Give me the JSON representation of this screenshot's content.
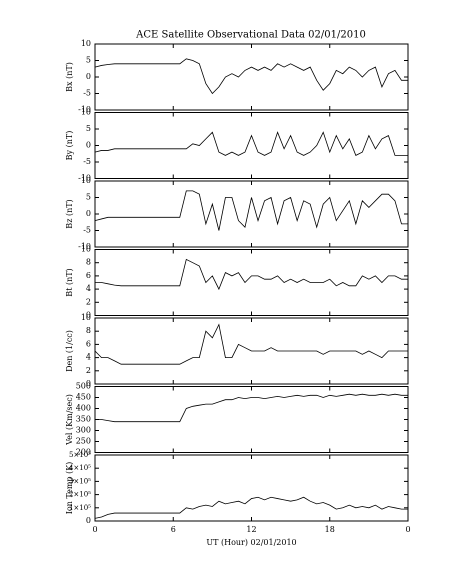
{
  "chart_data": [
    {
      "type": "line",
      "title": "ACE Satellite Observational Data   02/01/2010",
      "ylabel": "Bx (nT)",
      "x": [
        0,
        0.5,
        1,
        1.5,
        2,
        2.5,
        3,
        3.5,
        4,
        4.5,
        5,
        5.5,
        6,
        6.5,
        7,
        7.5,
        8,
        8.5,
        9,
        9.5,
        10,
        10.5,
        11,
        11.5,
        12,
        12.5,
        13,
        13.5,
        14,
        14.5,
        15,
        15.5,
        16,
        16.5,
        17,
        17.5,
        18,
        18.5,
        19,
        19.5,
        20,
        20.5,
        21,
        21.5,
        22,
        22.5,
        23,
        23.5,
        24
      ],
      "values": [
        3,
        3.5,
        3.8,
        4,
        4,
        4,
        4,
        4,
        4,
        4,
        4,
        4,
        4,
        4,
        5.5,
        5,
        4,
        -2,
        -5,
        -3,
        0,
        1,
        0,
        2,
        3,
        2,
        3,
        2,
        4,
        3,
        4,
        3,
        2,
        3,
        -1,
        -4,
        -2,
        2,
        1,
        3,
        2,
        0,
        2,
        3,
        -3,
        1,
        2,
        -1,
        -1
      ],
      "xlim": [
        0,
        24
      ],
      "xticks": [
        0,
        6,
        12,
        18,
        {
          "value": 24,
          "label": "0"
        }
      ],
      "ylim": [
        -10,
        10
      ],
      "yticks": [
        -10,
        -5,
        0,
        5,
        10
      ],
      "color": "#000000"
    },
    {
      "type": "line",
      "ylabel": "By (nT)",
      "x": [
        0,
        0.5,
        1,
        1.5,
        2,
        2.5,
        3,
        3.5,
        4,
        4.5,
        5,
        5.5,
        6,
        6.5,
        7,
        7.5,
        8,
        8.5,
        9,
        9.5,
        10,
        10.5,
        11,
        11.5,
        12,
        12.5,
        13,
        13.5,
        14,
        14.5,
        15,
        15.5,
        16,
        16.5,
        17,
        17.5,
        18,
        18.5,
        19,
        19.5,
        20,
        20.5,
        21,
        21.5,
        22,
        22.5,
        23,
        23.5,
        24
      ],
      "values": [
        -2,
        -1.5,
        -1.5,
        -1,
        -1,
        -1,
        -1,
        -1,
        -1,
        -1,
        -1,
        -1,
        -1,
        -1,
        -1,
        0.5,
        0,
        2,
        4,
        -2,
        -3,
        -2,
        -3,
        -2,
        3,
        -2,
        -3,
        -2,
        4,
        -1,
        3,
        -2,
        -3,
        -2,
        0,
        4,
        -2,
        3,
        -1,
        2,
        -3,
        -2,
        3,
        -1,
        2,
        3,
        -3,
        -3,
        -3
      ],
      "xlim": [
        0,
        24
      ],
      "xticks": [
        0,
        6,
        12,
        18,
        {
          "value": 24,
          "label": "0"
        }
      ],
      "ylim": [
        -10,
        10
      ],
      "yticks": [
        -10,
        -5,
        0,
        5,
        10
      ],
      "color": "#000000"
    },
    {
      "type": "line",
      "ylabel": "Bz (nT)",
      "x": [
        0,
        0.5,
        1,
        1.5,
        2,
        2.5,
        3,
        3.5,
        4,
        4.5,
        5,
        5.5,
        6,
        6.5,
        7,
        7.5,
        8,
        8.5,
        9,
        9.5,
        10,
        10.5,
        11,
        11.5,
        12,
        12.5,
        13,
        13.5,
        14,
        14.5,
        15,
        15.5,
        16,
        16.5,
        17,
        17.5,
        18,
        18.5,
        19,
        19.5,
        20,
        20.5,
        21,
        21.5,
        22,
        22.5,
        23,
        23.5,
        24
      ],
      "values": [
        -2,
        -1.5,
        -1,
        -1,
        -1,
        -1,
        -1,
        -1,
        -1,
        -1,
        -1,
        -1,
        -1,
        -1,
        7,
        7,
        6,
        -3,
        3,
        -5,
        5,
        5,
        -2,
        -4,
        5,
        -2,
        4,
        5,
        -3,
        4,
        5,
        -2,
        4,
        3,
        -4,
        3,
        5,
        -2,
        1,
        4,
        -3,
        4,
        2,
        4,
        6,
        6,
        4,
        -3,
        -3
      ],
      "xlim": [
        0,
        24
      ],
      "xticks": [
        0,
        6,
        12,
        18,
        {
          "value": 24,
          "label": "0"
        }
      ],
      "ylim": [
        -10,
        10
      ],
      "yticks": [
        -10,
        -5,
        0,
        5,
        10
      ],
      "color": "#000000"
    },
    {
      "type": "line",
      "ylabel": "Bt (nT)",
      "x": [
        0,
        0.5,
        1,
        1.5,
        2,
        2.5,
        3,
        3.5,
        4,
        4.5,
        5,
        5.5,
        6,
        6.5,
        7,
        7.5,
        8,
        8.5,
        9,
        9.5,
        10,
        10.5,
        11,
        11.5,
        12,
        12.5,
        13,
        13.5,
        14,
        14.5,
        15,
        15.5,
        16,
        16.5,
        17,
        17.5,
        18,
        18.5,
        19,
        19.5,
        20,
        20.5,
        21,
        21.5,
        22,
        22.5,
        23,
        23.5,
        24
      ],
      "values": [
        5,
        5,
        4.8,
        4.6,
        4.5,
        4.5,
        4.5,
        4.5,
        4.5,
        4.5,
        4.5,
        4.5,
        4.5,
        4.5,
        8.5,
        8,
        7.5,
        5,
        6,
        4,
        6.5,
        6,
        6.5,
        5,
        6,
        6,
        5.5,
        5.5,
        6,
        5,
        5.5,
        5,
        5.5,
        5,
        5,
        5,
        5.5,
        4.5,
        5,
        4.5,
        4.5,
        6,
        5.5,
        6,
        5,
        6,
        6,
        5.5,
        5.5
      ],
      "xlim": [
        0,
        24
      ],
      "xticks": [
        0,
        6,
        12,
        18,
        {
          "value": 24,
          "label": "0"
        }
      ],
      "ylim": [
        0,
        10
      ],
      "yticks": [
        0,
        2,
        4,
        6,
        8,
        10
      ],
      "color": "#000000"
    },
    {
      "type": "line",
      "ylabel": "Den (1/cc)",
      "x": [
        0,
        0.5,
        1,
        1.5,
        2,
        2.5,
        3,
        3.5,
        4,
        4.5,
        5,
        5.5,
        6,
        6.5,
        7,
        7.5,
        8,
        8.5,
        9,
        9.5,
        10,
        10.5,
        11,
        11.5,
        12,
        12.5,
        13,
        13.5,
        14,
        14.5,
        15,
        15.5,
        16,
        16.5,
        17,
        17.5,
        18,
        18.5,
        19,
        19.5,
        20,
        20.5,
        21,
        21.5,
        22,
        22.5,
        23,
        23.5,
        24
      ],
      "values": [
        5,
        4,
        4,
        3.5,
        3,
        3,
        3,
        3,
        3,
        3,
        3,
        3,
        3,
        3,
        3.5,
        4,
        4,
        8,
        7,
        9,
        4,
        4,
        6,
        5.5,
        5,
        5,
        5,
        5.5,
        5,
        5,
        5,
        5,
        5,
        5,
        5,
        4.5,
        5,
        5,
        5,
        5,
        5,
        4.5,
        5,
        4.5,
        4,
        5,
        5,
        5,
        5
      ],
      "xlim": [
        0,
        24
      ],
      "xticks": [
        0,
        6,
        12,
        18,
        {
          "value": 24,
          "label": "0"
        }
      ],
      "ylim": [
        0,
        10
      ],
      "yticks": [
        0,
        2,
        4,
        6,
        8,
        10
      ],
      "color": "#000000"
    },
    {
      "type": "line",
      "ylabel": "Vel (Km/sec)",
      "x": [
        0,
        0.5,
        1,
        1.5,
        2,
        2.5,
        3,
        3.5,
        4,
        4.5,
        5,
        5.5,
        6,
        6.5,
        7,
        7.5,
        8,
        8.5,
        9,
        9.5,
        10,
        10.5,
        11,
        11.5,
        12,
        12.5,
        13,
        13.5,
        14,
        14.5,
        15,
        15.5,
        16,
        16.5,
        17,
        17.5,
        18,
        18.5,
        19,
        19.5,
        20,
        20.5,
        21,
        21.5,
        22,
        22.5,
        23,
        23.5,
        24
      ],
      "values": [
        350,
        350,
        345,
        340,
        340,
        340,
        340,
        340,
        340,
        340,
        340,
        340,
        340,
        340,
        400,
        410,
        415,
        420,
        420,
        430,
        440,
        440,
        450,
        445,
        450,
        450,
        445,
        450,
        455,
        450,
        455,
        460,
        455,
        460,
        460,
        450,
        460,
        455,
        460,
        465,
        460,
        465,
        460,
        460,
        465,
        460,
        465,
        460,
        460
      ],
      "xlim": [
        0,
        24
      ],
      "xticks": [
        0,
        6,
        12,
        18,
        {
          "value": 24,
          "label": "0"
        }
      ],
      "ylim": [
        200,
        500
      ],
      "yticks": [
        200,
        250,
        300,
        350,
        400,
        450,
        500
      ],
      "color": "#000000"
    },
    {
      "type": "line",
      "ylabel": "Ion Temp (K)",
      "xlabel": "UT (Hour)   02/01/2010",
      "x": [
        0,
        0.5,
        1,
        1.5,
        2,
        2.5,
        3,
        3.5,
        4,
        4.5,
        5,
        5.5,
        6,
        6.5,
        7,
        7.5,
        8,
        8.5,
        9,
        9.5,
        10,
        10.5,
        11,
        11.5,
        12,
        12.5,
        13,
        13.5,
        14,
        14.5,
        15,
        15.5,
        16,
        16.5,
        17,
        17.5,
        18,
        18.5,
        19,
        19.5,
        20,
        20.5,
        21,
        21.5,
        22,
        22.5,
        23,
        23.5,
        24
      ],
      "values": [
        20000,
        30000,
        50000,
        60000,
        60000,
        60000,
        60000,
        60000,
        60000,
        60000,
        60000,
        60000,
        60000,
        60000,
        100000,
        90000,
        110000,
        120000,
        110000,
        150000,
        130000,
        140000,
        150000,
        130000,
        170000,
        180000,
        160000,
        180000,
        170000,
        160000,
        150000,
        160000,
        180000,
        150000,
        130000,
        140000,
        120000,
        90000,
        100000,
        120000,
        100000,
        110000,
        100000,
        120000,
        90000,
        110000,
        100000,
        90000,
        90000
      ],
      "xlim": [
        0,
        24
      ],
      "xticks": [
        0,
        6,
        12,
        18,
        {
          "value": 24,
          "label": "0"
        }
      ],
      "ylim": [
        0,
        500000
      ],
      "yticks": [
        0,
        {
          "value": 100000,
          "label": "1×10⁵"
        },
        {
          "value": 200000,
          "label": "2×10⁵"
        },
        {
          "value": 300000,
          "label": "3×10⁵"
        },
        {
          "value": 400000,
          "label": "4×10⁵"
        },
        {
          "value": 500000,
          "label": "5×10⁵"
        }
      ],
      "color": "#000000"
    }
  ]
}
